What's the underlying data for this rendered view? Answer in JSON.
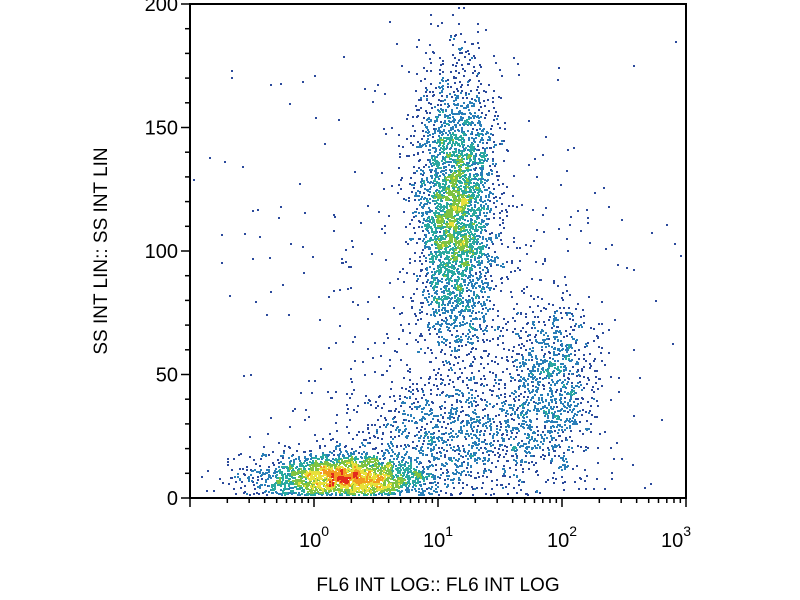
{
  "chart_data": {
    "type": "scatter",
    "style": "density-colored flow cytometry dot plot",
    "xlabel": "FL6 INT LOG:: FL6 INT LOG",
    "ylabel": "SS INT LIN:: SS INT LIN",
    "xscale": "log",
    "yscale": "linear",
    "xlim": [
      0.1,
      1000
    ],
    "ylim": [
      0,
      200
    ],
    "x_ticks": [
      {
        "value": 1,
        "base": "10",
        "exp": "0"
      },
      {
        "value": 10,
        "base": "10",
        "exp": "1"
      },
      {
        "value": 100,
        "base": "10",
        "exp": "2"
      },
      {
        "value": 1000,
        "base": "10",
        "exp": "3"
      }
    ],
    "y_ticks": [
      {
        "value": 0,
        "label": "0"
      },
      {
        "value": 50,
        "label": "50"
      },
      {
        "value": 100,
        "label": "100"
      },
      {
        "value": 150,
        "label": "150"
      },
      {
        "value": 200,
        "label": "200"
      }
    ],
    "grid": false,
    "legend": "none",
    "density_colors": [
      "#2b4a9c",
      "#2a7fb8",
      "#29a9a0",
      "#7fc341",
      "#e8e03a",
      "#f29a1f",
      "#e3291d"
    ],
    "populations": [
      {
        "x_center": 1.8,
        "y_center": 8,
        "x_log_spread": 0.35,
        "y_spread": 5,
        "points": 2600
      },
      {
        "x_center": 14,
        "y_center": 115,
        "x_log_spread": 0.16,
        "y_spread": 28,
        "points": 3400
      },
      {
        "x_center": 80,
        "y_center": 48,
        "x_log_spread": 0.2,
        "y_spread": 16,
        "points": 900
      },
      {
        "x_center": 15,
        "y_center": 25,
        "x_log_spread": 0.45,
        "y_spread": 12,
        "points": 1100
      },
      {
        "x_center": 8,
        "y_center": 80,
        "x_log_spread": 0.9,
        "y_spread": 55,
        "points": 500
      }
    ]
  }
}
